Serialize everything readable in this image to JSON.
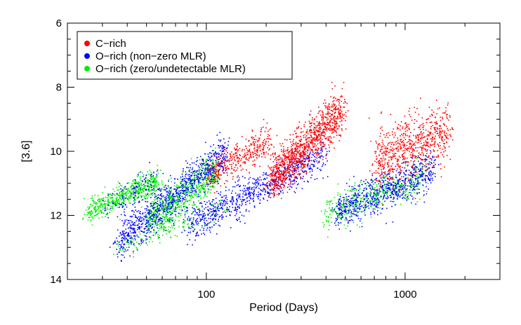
{
  "chart_data": {
    "type": "scatter",
    "title": "",
    "xlabel": "Period (Days)",
    "ylabel": "[3.6]",
    "x_scale": "log",
    "xlim": [
      20,
      3000
    ],
    "ylim": [
      14,
      6
    ],
    "y_inverted": true,
    "x_ticks": [
      {
        "value": 100,
        "label": "100"
      },
      {
        "value": 1000,
        "label": "1000"
      }
    ],
    "y_ticks": [
      {
        "value": 6,
        "label": "6"
      },
      {
        "value": 8,
        "label": "8"
      },
      {
        "value": 10,
        "label": "10"
      },
      {
        "value": 12,
        "label": "12"
      },
      {
        "value": 14,
        "label": "14"
      }
    ],
    "legend_position": "top-left",
    "series": [
      {
        "name": "C−rich",
        "color": "#ff0000",
        "clusters": [
          {
            "logP": [
              2.02,
              2.32
            ],
            "mag": [
              10.7,
              9.6
            ],
            "spread": 0.25,
            "n": 350
          },
          {
            "logP": [
              2.32,
              2.68
            ],
            "mag": [
              10.9,
              8.7
            ],
            "spread": 0.35,
            "n": 1100
          },
          {
            "logP": [
              2.85,
              3.22
            ],
            "mag": [
              10.2,
              9.4
            ],
            "spread": 0.45,
            "n": 700
          }
        ]
      },
      {
        "name": "O−rich (non−zero MLR)",
        "color": "#0000ff",
        "clusters": [
          {
            "logP": [
              1.55,
              2.1
            ],
            "mag": [
              12.9,
              10.0
            ],
            "spread": 0.28,
            "n": 900
          },
          {
            "logP": [
              1.9,
              2.6
            ],
            "mag": [
              12.3,
              10.1
            ],
            "spread": 0.28,
            "n": 800
          },
          {
            "logP": [
              2.65,
              3.15
            ],
            "mag": [
              11.9,
              10.5
            ],
            "spread": 0.3,
            "n": 700
          },
          {
            "logP": [
              1.5,
              1.75
            ],
            "mag": [
              11.8,
              10.9
            ],
            "spread": 0.25,
            "n": 120
          }
        ]
      },
      {
        "name": "O−rich (zero/undetectable MLR)",
        "color": "#00ee00",
        "clusters": [
          {
            "logP": [
              1.4,
              1.75
            ],
            "mag": [
              11.9,
              10.9
            ],
            "spread": 0.18,
            "n": 600
          },
          {
            "logP": [
              1.7,
              2.05
            ],
            "mag": [
              12.1,
              10.6
            ],
            "spread": 0.3,
            "n": 800
          },
          {
            "logP": [
              2.6,
              3.1
            ],
            "mag": [
              11.9,
              10.8
            ],
            "spread": 0.28,
            "n": 500
          },
          {
            "logP": [
              1.55,
              2.1
            ],
            "mag": [
              13.0,
              11.7
            ],
            "spread": 0.2,
            "n": 150
          }
        ]
      }
    ]
  }
}
